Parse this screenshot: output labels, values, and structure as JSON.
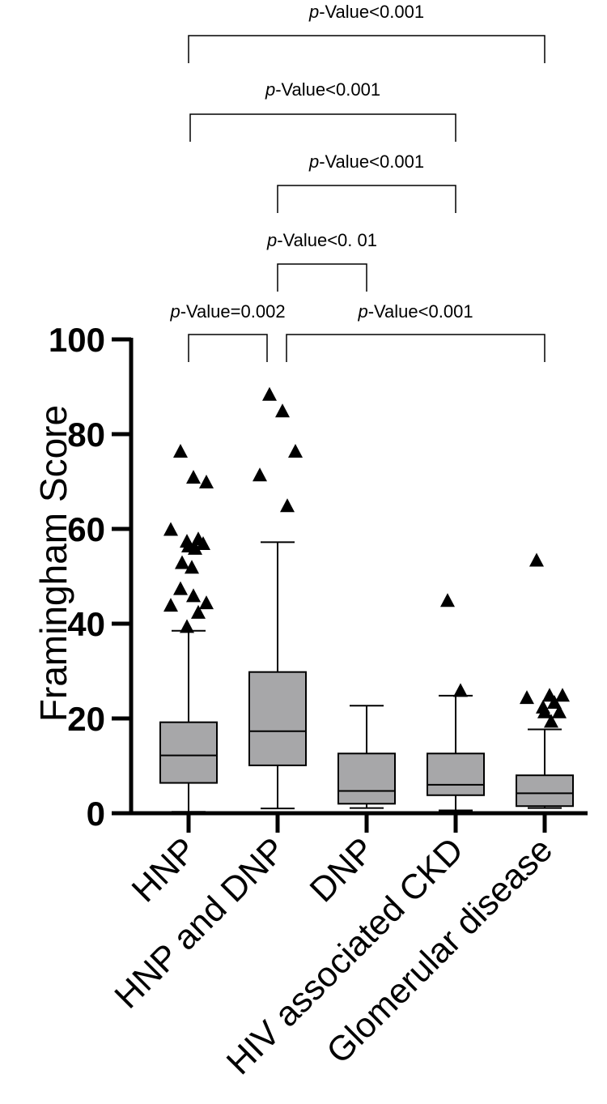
{
  "chart_data": {
    "type": "box",
    "title": "",
    "xlabel": "",
    "ylabel": "Framingham Score",
    "ylim": [
      0,
      100
    ],
    "yticks": [
      0,
      20,
      40,
      60,
      80,
      100
    ],
    "grid": false,
    "colors": {
      "box_fill": "#a7a7a9",
      "stroke": "#000000",
      "outlier": "#000000"
    },
    "categories": [
      "HNP",
      "HNP and DNP",
      "DNP",
      "HIV associated CKD",
      "Glomerular disease"
    ],
    "boxes": [
      {
        "category": "HNP",
        "whisker_low": 0.3,
        "q1": 6.4,
        "median": 12.2,
        "q3": 19.2,
        "whisker_high": 38.5,
        "outliers": [
          76.5,
          71,
          70,
          60,
          58,
          57.5,
          57,
          56.5,
          56,
          53,
          52,
          47.5,
          46,
          44.5,
          44,
          42.5,
          39.5
        ]
      },
      {
        "category": "HNP and DNP",
        "whisker_low": 1.0,
        "q1": 10.1,
        "median": 17.3,
        "q3": 29.8,
        "whisker_high": 57.2,
        "outliers": [
          88.5,
          85,
          76.5,
          71.5,
          65
        ]
      },
      {
        "category": "DNP",
        "whisker_low": 1.1,
        "q1": 2.0,
        "median": 4.7,
        "q3": 12.6,
        "whisker_high": 22.7,
        "outliers": []
      },
      {
        "category": "HIV associated CKD",
        "whisker_low": 0.6,
        "q1": 3.8,
        "median": 6.0,
        "q3": 12.6,
        "whisker_high": 24.8,
        "outliers": [
          45,
          26
        ]
      },
      {
        "category": "Glomerular disease",
        "whisker_low": 1.1,
        "q1": 1.5,
        "median": 4.2,
        "q3": 8.0,
        "whisker_high": 17.7,
        "outliers": [
          53.5,
          25,
          25,
          24.5,
          23.5,
          22.5,
          21.5,
          21.5,
          19.5
        ]
      }
    ],
    "annotations": [
      {
        "from": 0,
        "to": 4,
        "prefix": "p",
        "text": "-Value<0.001"
      },
      {
        "from": 0,
        "to": 3,
        "prefix": "p",
        "text": "-Value<0.001"
      },
      {
        "from": 1,
        "to": 3,
        "prefix": "p",
        "text": "-Value<0.001"
      },
      {
        "from": 1,
        "to": 2,
        "prefix": "p",
        "text": "-Value<0.  01"
      },
      {
        "from": 0,
        "to": 1,
        "prefix": "p",
        "text": "-Value=0.002"
      },
      {
        "from": 1,
        "to": 4,
        "prefix": "p",
        "text": "-Value<0.001"
      }
    ]
  }
}
